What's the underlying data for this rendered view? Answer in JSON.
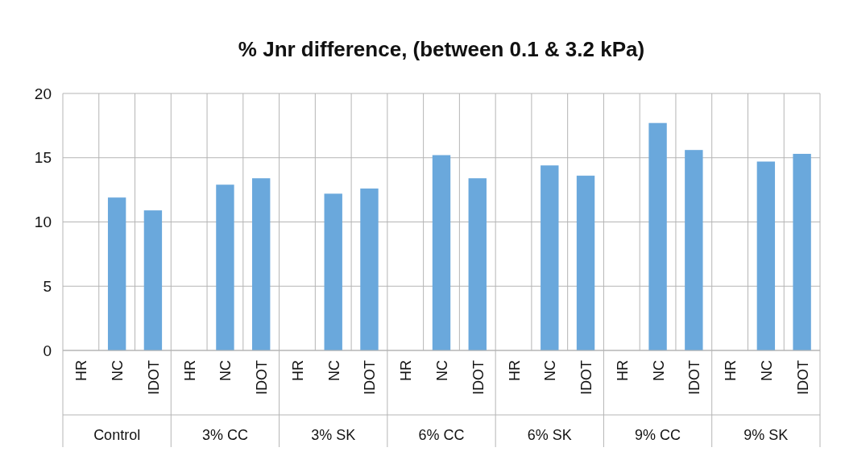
{
  "chart_data": {
    "type": "bar",
    "title": "% Jnr difference, (between 0.1 & 3.2 kPa)",
    "categories": [
      "HR",
      "NC",
      "IDOT",
      "HR",
      "NC",
      "IDOT",
      "HR",
      "NC",
      "IDOT",
      "HR",
      "NC",
      "IDOT",
      "HR",
      "NC",
      "IDOT",
      "HR",
      "NC",
      "IDOT",
      "HR",
      "NC",
      "IDOT"
    ],
    "values": [
      null,
      11.9,
      10.9,
      null,
      12.9,
      13.4,
      null,
      12.2,
      12.6,
      null,
      15.2,
      13.4,
      null,
      14.4,
      13.6,
      null,
      17.7,
      15.6,
      null,
      14.7,
      15.3
    ],
    "color": "#6aa8dc",
    "annotations": [
      "Control",
      "3% CC",
      "3% SK",
      "6% CC",
      "6% SK",
      "9% CC",
      "9% SK"
    ],
    "ylim": [
      0,
      20
    ],
    "yticks": [
      0,
      5,
      10,
      15,
      20
    ],
    "grid": true
  }
}
